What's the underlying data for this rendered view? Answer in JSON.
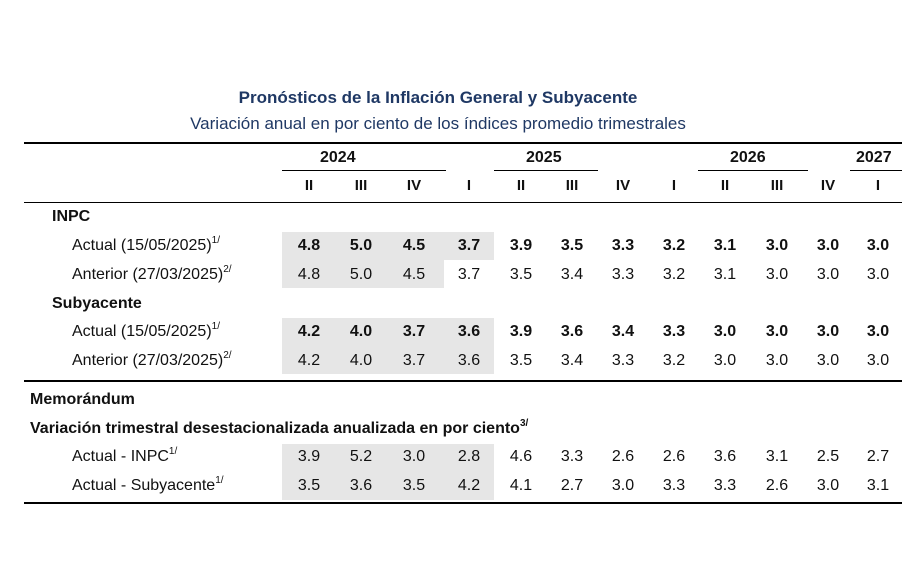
{
  "title": "Pronósticos de la Inflación General y Subyacente",
  "subtitle": "Variación anual en por ciento de los índices promedio trimestrales",
  "years": [
    "2024",
    "2025",
    "2026",
    "2027"
  ],
  "quarters": [
    "II",
    "III",
    "IV",
    "I",
    "II",
    "III",
    "IV",
    "I",
    "II",
    "III",
    "IV",
    "I"
  ],
  "sections": {
    "inpc": "INPC",
    "subyacente": "Subyacente",
    "memorandum": "Memorándum",
    "memo_subtitle": "Variación trimestral desestacionalizada anualizada en por ciento",
    "memo_subtitle_note": "3/"
  },
  "rows": {
    "inpc_actual": {
      "label": "Actual (15/05/2025)",
      "note": "1/",
      "values": [
        "4.8",
        "5.0",
        "4.5",
        "3.7",
        "3.9",
        "3.5",
        "3.3",
        "3.2",
        "3.1",
        "3.0",
        "3.0",
        "3.0"
      ]
    },
    "inpc_anterior": {
      "label": "Anterior (27/03/2025)",
      "note": "2/",
      "values": [
        "4.8",
        "5.0",
        "4.5",
        "3.7",
        "3.5",
        "3.4",
        "3.3",
        "3.2",
        "3.1",
        "3.0",
        "3.0",
        "3.0"
      ]
    },
    "sub_actual": {
      "label": "Actual (15/05/2025)",
      "note": "1/",
      "values": [
        "4.2",
        "4.0",
        "3.7",
        "3.6",
        "3.9",
        "3.6",
        "3.4",
        "3.3",
        "3.0",
        "3.0",
        "3.0",
        "3.0"
      ]
    },
    "sub_anterior": {
      "label": "Anterior (27/03/2025)",
      "note": "2/",
      "values": [
        "4.2",
        "4.0",
        "3.7",
        "3.6",
        "3.5",
        "3.4",
        "3.3",
        "3.2",
        "3.0",
        "3.0",
        "3.0",
        "3.0"
      ]
    },
    "memo_inpc": {
      "label": "Actual - INPC",
      "note": "1/",
      "values": [
        "3.9",
        "5.2",
        "3.0",
        "2.8",
        "4.6",
        "3.3",
        "2.6",
        "2.6",
        "3.6",
        "3.1",
        "2.5",
        "2.7"
      ]
    },
    "memo_sub": {
      "label": "Actual - Subyacente",
      "note": "1/",
      "values": [
        "3.5",
        "3.6",
        "3.5",
        "4.2",
        "4.1",
        "2.7",
        "3.0",
        "3.3",
        "3.3",
        "2.6",
        "3.0",
        "3.1"
      ]
    }
  }
}
